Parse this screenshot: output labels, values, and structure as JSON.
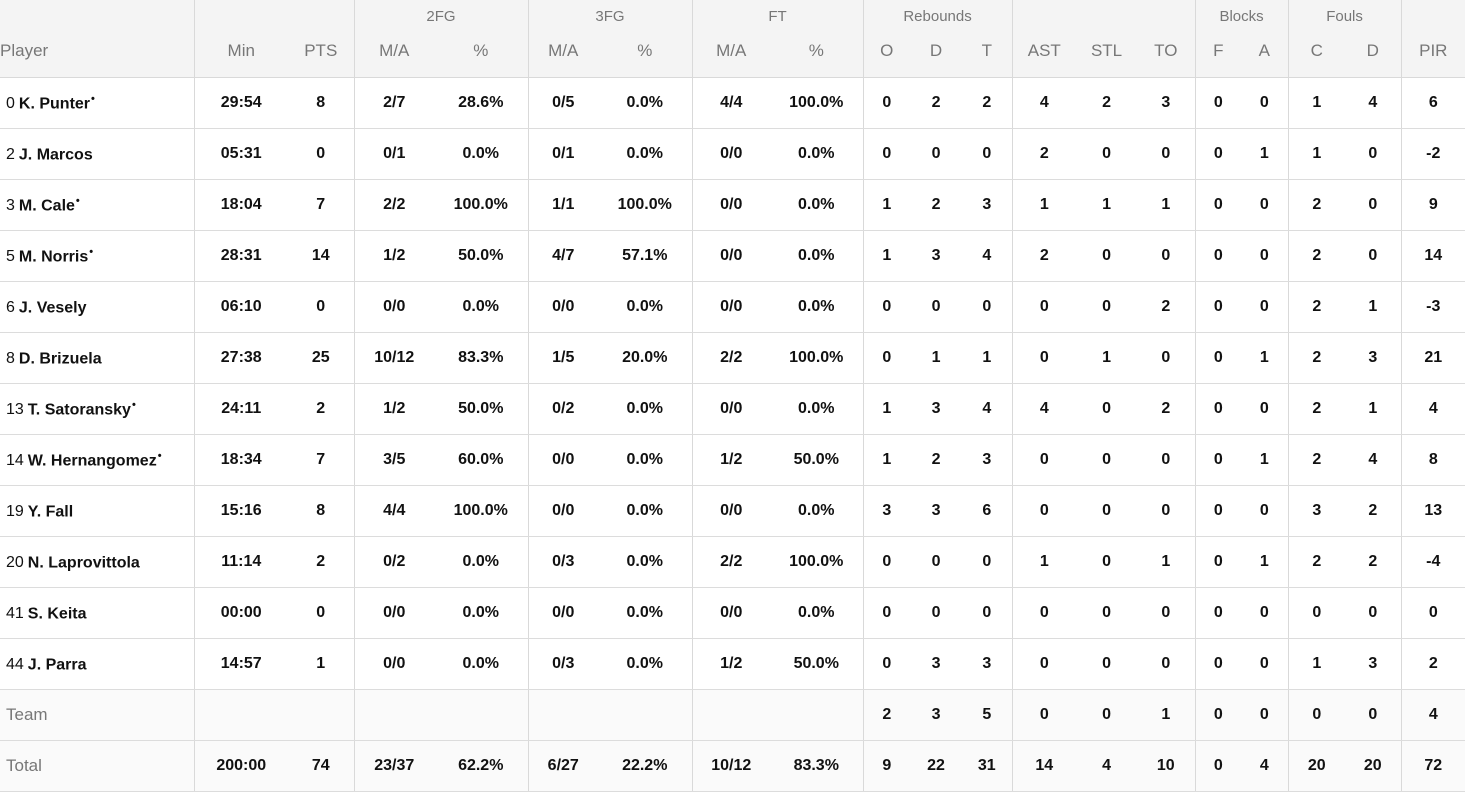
{
  "groups": {
    "two_fg": "2FG",
    "three_fg": "3FG",
    "ft": "FT",
    "rebounds": "Rebounds",
    "blocks": "Blocks",
    "fouls": "Fouls"
  },
  "headers": {
    "player": "Player",
    "min": "Min",
    "pts": "PTS",
    "fg2_ma": "M/A",
    "fg2_pct": "%",
    "fg3_ma": "M/A",
    "fg3_pct": "%",
    "ft_ma": "M/A",
    "ft_pct": "%",
    "reb_o": "O",
    "reb_d": "D",
    "reb_t": "T",
    "ast": "AST",
    "stl": "STL",
    "to": "TO",
    "blk_f": "F",
    "blk_a": "A",
    "foul_c": "C",
    "foul_d": "D",
    "pir": "PIR"
  },
  "players": [
    {
      "num": "0",
      "name": "K. Punter",
      "starter": "•",
      "min": "29:54",
      "pts": "8",
      "fg2": "2/7",
      "fg2p": "28.6%",
      "fg3": "0/5",
      "fg3p": "0.0%",
      "ft": "4/4",
      "ftp": "100.0%",
      "o": "0",
      "d": "2",
      "t": "2",
      "ast": "4",
      "stl": "2",
      "to": "3",
      "bf": "0",
      "ba": "0",
      "fc": "1",
      "fd": "4",
      "pir": "6"
    },
    {
      "num": "2",
      "name": "J. Marcos",
      "starter": "",
      "min": "05:31",
      "pts": "0",
      "fg2": "0/1",
      "fg2p": "0.0%",
      "fg3": "0/1",
      "fg3p": "0.0%",
      "ft": "0/0",
      "ftp": "0.0%",
      "o": "0",
      "d": "0",
      "t": "0",
      "ast": "2",
      "stl": "0",
      "to": "0",
      "bf": "0",
      "ba": "1",
      "fc": "1",
      "fd": "0",
      "pir": "-2"
    },
    {
      "num": "3",
      "name": "M. Cale",
      "starter": "•",
      "min": "18:04",
      "pts": "7",
      "fg2": "2/2",
      "fg2p": "100.0%",
      "fg3": "1/1",
      "fg3p": "100.0%",
      "ft": "0/0",
      "ftp": "0.0%",
      "o": "1",
      "d": "2",
      "t": "3",
      "ast": "1",
      "stl": "1",
      "to": "1",
      "bf": "0",
      "ba": "0",
      "fc": "2",
      "fd": "0",
      "pir": "9"
    },
    {
      "num": "5",
      "name": "M. Norris",
      "starter": "•",
      "min": "28:31",
      "pts": "14",
      "fg2": "1/2",
      "fg2p": "50.0%",
      "fg3": "4/7",
      "fg3p": "57.1%",
      "ft": "0/0",
      "ftp": "0.0%",
      "o": "1",
      "d": "3",
      "t": "4",
      "ast": "2",
      "stl": "0",
      "to": "0",
      "bf": "0",
      "ba": "0",
      "fc": "2",
      "fd": "0",
      "pir": "14"
    },
    {
      "num": "6",
      "name": "J. Vesely",
      "starter": "",
      "min": "06:10",
      "pts": "0",
      "fg2": "0/0",
      "fg2p": "0.0%",
      "fg3": "0/0",
      "fg3p": "0.0%",
      "ft": "0/0",
      "ftp": "0.0%",
      "o": "0",
      "d": "0",
      "t": "0",
      "ast": "0",
      "stl": "0",
      "to": "2",
      "bf": "0",
      "ba": "0",
      "fc": "2",
      "fd": "1",
      "pir": "-3"
    },
    {
      "num": "8",
      "name": "D. Brizuela",
      "starter": "",
      "min": "27:38",
      "pts": "25",
      "fg2": "10/12",
      "fg2p": "83.3%",
      "fg3": "1/5",
      "fg3p": "20.0%",
      "ft": "2/2",
      "ftp": "100.0%",
      "o": "0",
      "d": "1",
      "t": "1",
      "ast": "0",
      "stl": "1",
      "to": "0",
      "bf": "0",
      "ba": "1",
      "fc": "2",
      "fd": "3",
      "pir": "21"
    },
    {
      "num": "13",
      "name": "T. Satoransky",
      "starter": "•",
      "min": "24:11",
      "pts": "2",
      "fg2": "1/2",
      "fg2p": "50.0%",
      "fg3": "0/2",
      "fg3p": "0.0%",
      "ft": "0/0",
      "ftp": "0.0%",
      "o": "1",
      "d": "3",
      "t": "4",
      "ast": "4",
      "stl": "0",
      "to": "2",
      "bf": "0",
      "ba": "0",
      "fc": "2",
      "fd": "1",
      "pir": "4"
    },
    {
      "num": "14",
      "name": "W. Hernangomez",
      "starter": "•",
      "min": "18:34",
      "pts": "7",
      "fg2": "3/5",
      "fg2p": "60.0%",
      "fg3": "0/0",
      "fg3p": "0.0%",
      "ft": "1/2",
      "ftp": "50.0%",
      "o": "1",
      "d": "2",
      "t": "3",
      "ast": "0",
      "stl": "0",
      "to": "0",
      "bf": "0",
      "ba": "1",
      "fc": "2",
      "fd": "4",
      "pir": "8"
    },
    {
      "num": "19",
      "name": "Y. Fall",
      "starter": "",
      "min": "15:16",
      "pts": "8",
      "fg2": "4/4",
      "fg2p": "100.0%",
      "fg3": "0/0",
      "fg3p": "0.0%",
      "ft": "0/0",
      "ftp": "0.0%",
      "o": "3",
      "d": "3",
      "t": "6",
      "ast": "0",
      "stl": "0",
      "to": "0",
      "bf": "0",
      "ba": "0",
      "fc": "3",
      "fd": "2",
      "pir": "13"
    },
    {
      "num": "20",
      "name": "N. Laprovittola",
      "starter": "",
      "min": "11:14",
      "pts": "2",
      "fg2": "0/2",
      "fg2p": "0.0%",
      "fg3": "0/3",
      "fg3p": "0.0%",
      "ft": "2/2",
      "ftp": "100.0%",
      "o": "0",
      "d": "0",
      "t": "0",
      "ast": "1",
      "stl": "0",
      "to": "1",
      "bf": "0",
      "ba": "1",
      "fc": "2",
      "fd": "2",
      "pir": "-4"
    },
    {
      "num": "41",
      "name": "S. Keita",
      "starter": "",
      "min": "00:00",
      "pts": "0",
      "fg2": "0/0",
      "fg2p": "0.0%",
      "fg3": "0/0",
      "fg3p": "0.0%",
      "ft": "0/0",
      "ftp": "0.0%",
      "o": "0",
      "d": "0",
      "t": "0",
      "ast": "0",
      "stl": "0",
      "to": "0",
      "bf": "0",
      "ba": "0",
      "fc": "0",
      "fd": "0",
      "pir": "0"
    },
    {
      "num": "44",
      "name": "J. Parra",
      "starter": "",
      "min": "14:57",
      "pts": "1",
      "fg2": "0/0",
      "fg2p": "0.0%",
      "fg3": "0/3",
      "fg3p": "0.0%",
      "ft": "1/2",
      "ftp": "50.0%",
      "o": "0",
      "d": "3",
      "t": "3",
      "ast": "0",
      "stl": "0",
      "to": "0",
      "bf": "0",
      "ba": "0",
      "fc": "1",
      "fd": "3",
      "pir": "2"
    }
  ],
  "team": {
    "label": "Team",
    "min": "",
    "pts": "",
    "fg2": "",
    "fg2p": "",
    "fg3": "",
    "fg3p": "",
    "ft": "",
    "ftp": "",
    "o": "2",
    "d": "3",
    "t": "5",
    "ast": "0",
    "stl": "0",
    "to": "1",
    "bf": "0",
    "ba": "0",
    "fc": "0",
    "fd": "0",
    "pir": "4"
  },
  "total": {
    "label": "Total",
    "min": "200:00",
    "pts": "74",
    "fg2": "23/37",
    "fg2p": "62.2%",
    "fg3": "6/27",
    "fg3p": "22.2%",
    "ft": "10/12",
    "ftp": "83.3%",
    "o": "9",
    "d": "22",
    "t": "31",
    "ast": "14",
    "stl": "4",
    "to": "10",
    "bf": "0",
    "ba": "4",
    "fc": "20",
    "fd": "20",
    "pir": "72"
  }
}
